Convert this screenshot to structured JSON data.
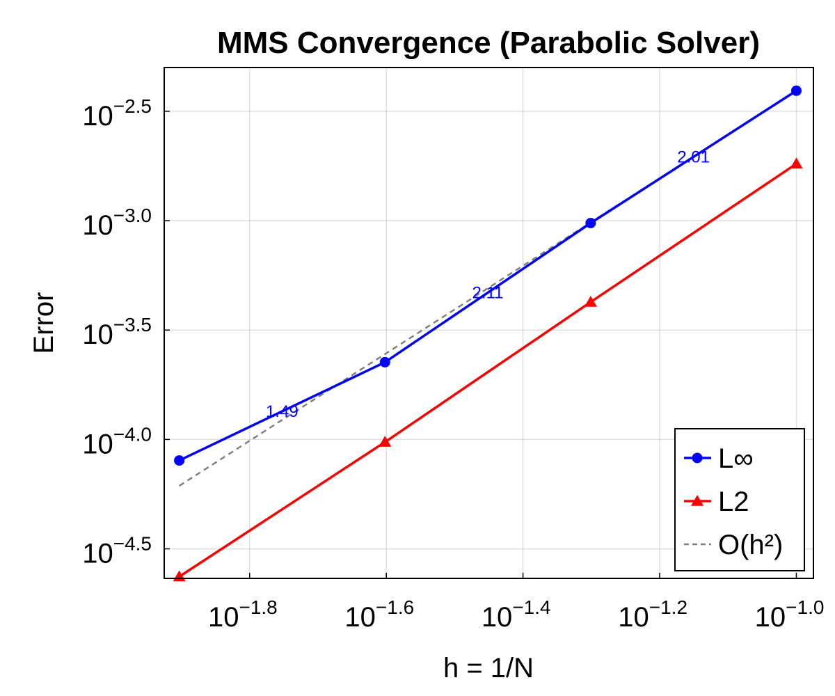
{
  "chart_data": {
    "type": "line",
    "title": "MMS Convergence (Parabolic Solver)",
    "xlabel": "h = 1/N",
    "ylabel": "Error",
    "xscale": "log10",
    "yscale": "log10",
    "xlim_log10": [
      -1.925,
      -0.975
    ],
    "ylim_log10": [
      -4.635,
      -2.3
    ],
    "x_ticks_log10": [
      -1.8,
      -1.6,
      -1.4,
      -1.2,
      -1.0
    ],
    "x_tick_labels": [
      "−1.8",
      "−1.6",
      "−1.4",
      "−1.2",
      "−1.0"
    ],
    "y_ticks_log10": [
      -2.5,
      -3.0,
      -3.5,
      -4.0,
      -4.5
    ],
    "y_tick_labels": [
      "−2.5",
      "−3.0",
      "−3.5",
      "−4.0",
      "−4.5"
    ],
    "tick_base": "10",
    "grid": true,
    "legend_position": "bottom-right",
    "series": [
      {
        "name": "L∞",
        "color": "#0000ff",
        "marker": "circle",
        "x_log10": [
          -1.903,
          -1.602,
          -1.301,
          -1.0
        ],
        "y_log10": [
          -4.096,
          -3.647,
          -3.011,
          -2.406
        ]
      },
      {
        "name": "L2",
        "color": "#ff0000",
        "marker": "triangle",
        "x_log10": [
          -1.903,
          -1.602,
          -1.301,
          -1.0
        ],
        "y_log10": [
          -4.627,
          -4.012,
          -3.372,
          -2.74
        ]
      },
      {
        "name": "O(h²)",
        "color": "#808080",
        "marker": "none",
        "dashed": true,
        "x_log10": [
          -1.903,
          -1.0
        ],
        "y_log10": [
          -4.212,
          -2.406
        ]
      }
    ],
    "annotations": [
      {
        "text": "1.49",
        "x_log10": -1.7525,
        "y_log10": -3.8715,
        "color": "#0000ff"
      },
      {
        "text": "2.11",
        "x_log10": -1.4515,
        "y_log10": -3.329,
        "color": "#0000ff"
      },
      {
        "text": "2.01",
        "x_log10": -1.1505,
        "y_log10": -2.7085,
        "color": "#0000ff"
      }
    ]
  }
}
